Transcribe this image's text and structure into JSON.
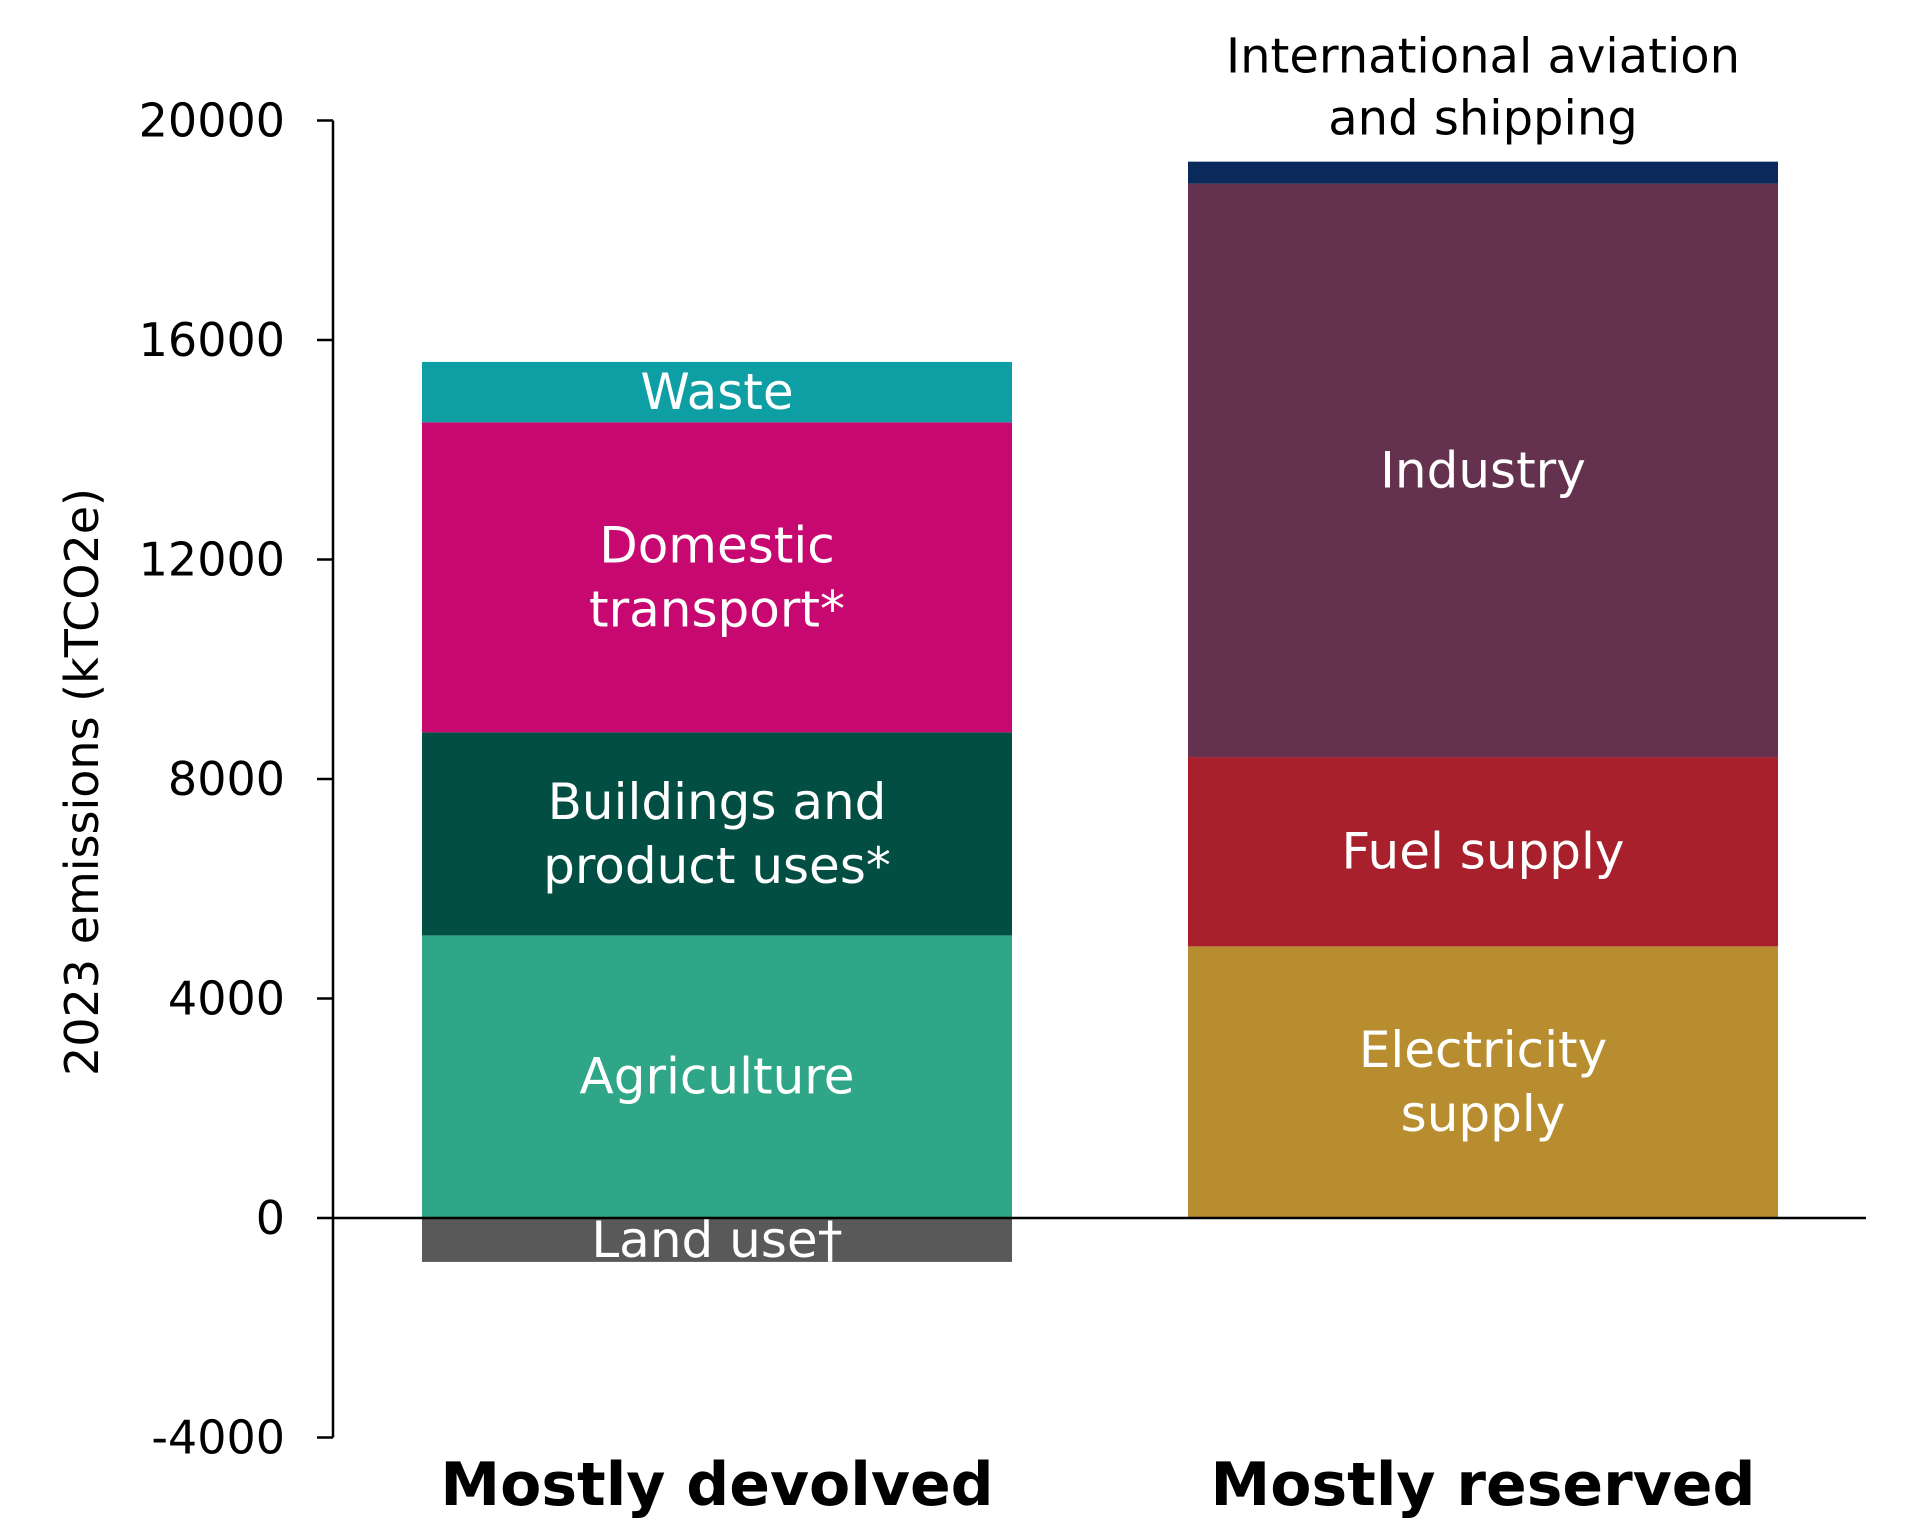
{
  "chart_data": {
    "type": "bar",
    "stacked": true,
    "ylabel": "2023 emissions (kTCO2e)",
    "ylim": [
      -4000,
      20000
    ],
    "yticks": [
      -4000,
      0,
      4000,
      8000,
      12000,
      16000,
      20000
    ],
    "grid": false,
    "legend": "none",
    "categories": [
      "Mostly devolved",
      "Mostly reserved"
    ],
    "series": [
      {
        "name": "Land use†",
        "category": "Mostly devolved",
        "value": -800,
        "color": "#595959",
        "label_lines": [
          "Land use†"
        ]
      },
      {
        "name": "Agriculture",
        "category": "Mostly devolved",
        "value": 5150,
        "color": "#2ea687",
        "label_lines": [
          "Agriculture"
        ]
      },
      {
        "name": "Buildings and product uses*",
        "category": "Mostly devolved",
        "value": 3700,
        "color": "#034e43",
        "label_lines": [
          "Buildings and",
          "product uses*"
        ]
      },
      {
        "name": "Domestic transport*",
        "category": "Mostly devolved",
        "value": 5650,
        "color": "#c70870",
        "label_lines": [
          "Domestic",
          "transport*"
        ]
      },
      {
        "name": "Waste",
        "category": "Mostly devolved",
        "value": 1100,
        "color": "#0e9fa4",
        "label_lines": [
          "Waste"
        ]
      },
      {
        "name": "Electricity supply",
        "category": "Mostly reserved",
        "value": 4950,
        "color": "#b88d2f",
        "label_lines": [
          "Electricity",
          "supply"
        ]
      },
      {
        "name": "Fuel supply",
        "category": "Mostly reserved",
        "value": 3450,
        "color": "#a7202b",
        "label_lines": [
          "Fuel supply"
        ]
      },
      {
        "name": "Industry",
        "category": "Mostly reserved",
        "value": 10450,
        "color": "#64324f",
        "label_lines": [
          "Industry"
        ]
      },
      {
        "name": "International aviation and shipping",
        "category": "Mostly reserved",
        "value": 400,
        "color": "#0b2a5c",
        "label_lines": [
          "International aviation",
          "and shipping"
        ],
        "label_outside": true
      }
    ]
  }
}
